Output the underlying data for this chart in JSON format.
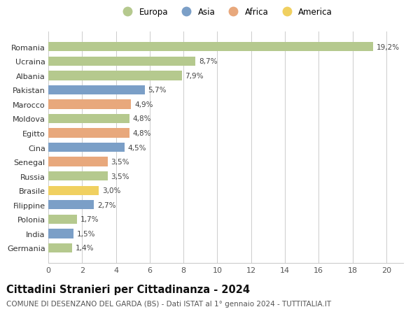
{
  "countries": [
    "Germania",
    "India",
    "Polonia",
    "Filippine",
    "Brasile",
    "Russia",
    "Senegal",
    "Cina",
    "Egitto",
    "Moldova",
    "Marocco",
    "Pakistan",
    "Albania",
    "Ucraina",
    "Romania"
  ],
  "values": [
    1.4,
    1.5,
    1.7,
    2.7,
    3.0,
    3.5,
    3.5,
    4.5,
    4.8,
    4.8,
    4.9,
    5.7,
    7.9,
    8.7,
    19.2
  ],
  "labels": [
    "1,4%",
    "1,5%",
    "1,7%",
    "2,7%",
    "3,0%",
    "3,5%",
    "3,5%",
    "4,5%",
    "4,8%",
    "4,8%",
    "4,9%",
    "5,7%",
    "7,9%",
    "8,7%",
    "19,2%"
  ],
  "continents": [
    "Europa",
    "Asia",
    "Europa",
    "Asia",
    "America",
    "Europa",
    "Africa",
    "Asia",
    "Africa",
    "Europa",
    "Africa",
    "Asia",
    "Europa",
    "Europa",
    "Europa"
  ],
  "colors": {
    "Europa": "#b5c98e",
    "Asia": "#7b9fc7",
    "Africa": "#e8a87c",
    "America": "#f0d060"
  },
  "legend_order": [
    "Europa",
    "Asia",
    "Africa",
    "America"
  ],
  "xlim": [
    0,
    21
  ],
  "xticks": [
    0,
    2,
    4,
    6,
    8,
    10,
    12,
    14,
    16,
    18,
    20
  ],
  "title": "Cittadini Stranieri per Cittadinanza - 2024",
  "subtitle": "COMUNE DI DESENZANO DEL GARDA (BS) - Dati ISTAT al 1° gennaio 2024 - TUTTITALIA.IT",
  "background_color": "#ffffff",
  "grid_color": "#cccccc",
  "bar_height": 0.65,
  "title_fontsize": 10.5,
  "subtitle_fontsize": 7.5,
  "label_fontsize": 7.5,
  "tick_fontsize": 8,
  "legend_fontsize": 8.5
}
